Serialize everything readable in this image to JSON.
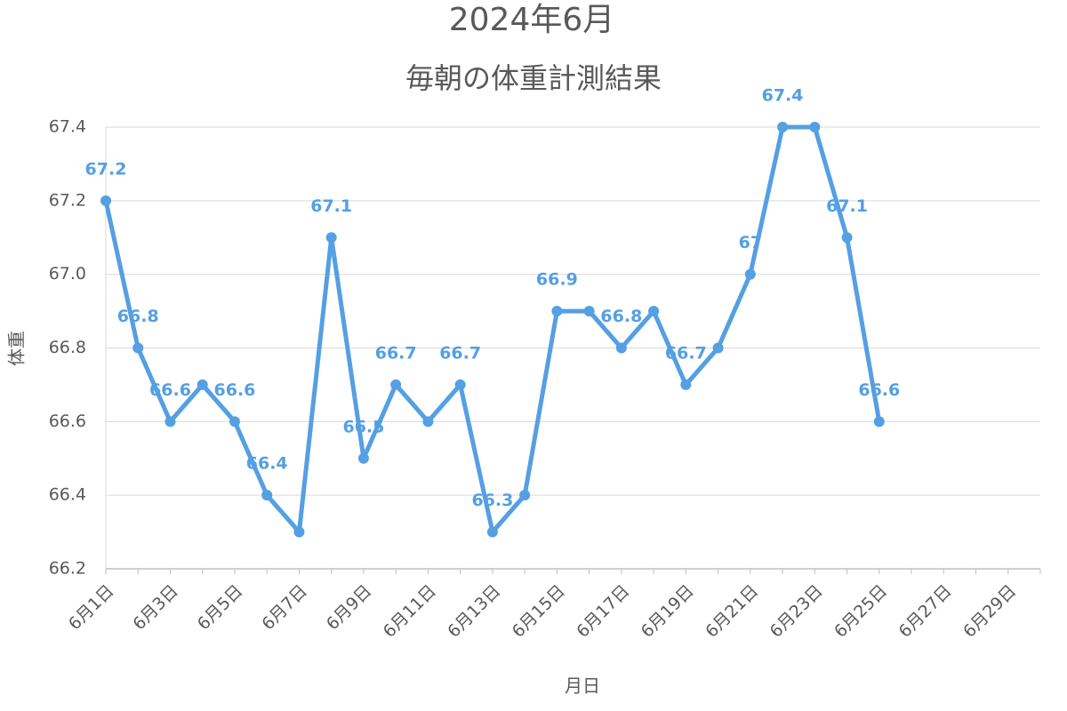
{
  "chart_data": {
    "type": "line",
    "title": "2024年6月",
    "subtitle": "毎朝の体重計測結果",
    "x_label": "月日",
    "y_label": "体重",
    "categories": [
      "6月1日",
      null,
      "6月3日",
      null,
      "6月5日",
      null,
      "6月7日",
      null,
      "6月9日",
      null,
      "6月11日",
      null,
      "6月13日",
      null,
      "6月15日",
      null,
      "6月17日",
      null,
      "6月19日",
      null,
      "6月21日",
      null,
      "6月23日",
      null,
      "6月25日",
      null,
      "6月27日",
      null,
      "6月29日",
      null
    ],
    "series": [
      {
        "name": "体重",
        "color": "#559fe3",
        "values": [
          67.2,
          66.8,
          66.6,
          66.7,
          66.6,
          66.4,
          66.3,
          67.1,
          66.5,
          66.7,
          66.6,
          66.7,
          66.3,
          66.4,
          66.9,
          66.9,
          66.8,
          66.9,
          66.7,
          66.8,
          67.0,
          67.4,
          67.4,
          67.1,
          66.6,
          null,
          null,
          null,
          null,
          null
        ],
        "value_labels": [
          "67.2",
          "66.8",
          "66.6",
          null,
          "66.6",
          "66.4",
          null,
          "67.1",
          "66.5",
          "66.7",
          null,
          "66.7",
          "66.3",
          null,
          "66.9",
          null,
          "66.8",
          null,
          "66.7",
          null,
          "67",
          "67.4",
          null,
          "67.1",
          "66.6",
          null,
          null,
          null,
          null,
          null
        ]
      }
    ],
    "ylim": [
      66.2,
      67.4
    ],
    "yticks": [
      66.2,
      66.4,
      66.6,
      66.8,
      {
        "value": 67,
        "label": "67.0"
      },
      67.2,
      67.4
    ],
    "grid": true
  }
}
